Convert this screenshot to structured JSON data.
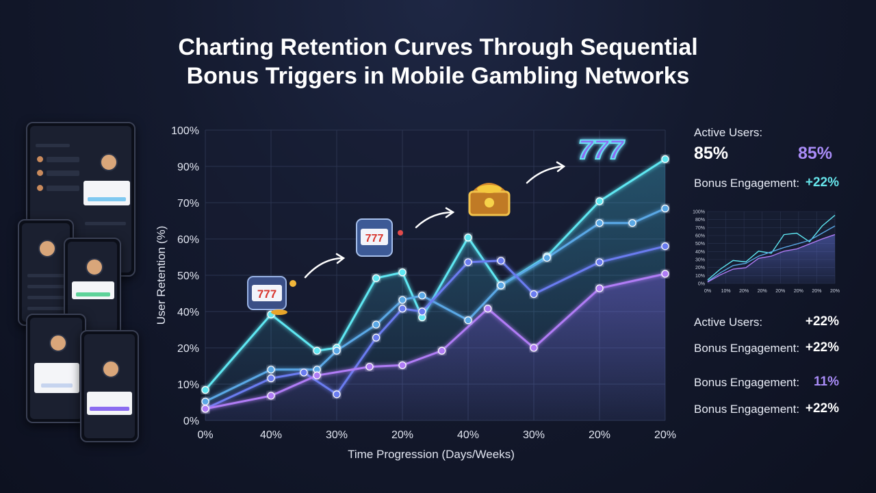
{
  "title": [
    "Charting Retention Curves Through Sequential",
    "Bonus Triggers in Mobile Gambling Networks"
  ],
  "colors": {
    "cyan": "#5ee7f2",
    "blue": "#5aa8e6",
    "indigo": "#6b7cf0",
    "purple": "#b07cf5",
    "background": "#141a2e"
  },
  "stats": {
    "active_users_label": "Active Users:",
    "active_users_value_a": "85%",
    "active_users_value_b": "85%",
    "bonus_engagement_label": "Bonus Engagement:",
    "bonus_engagement_value": "+22%",
    "rows": [
      {
        "label": "Active Users:",
        "value": "+22%"
      },
      {
        "label": "Bonus Engagement:",
        "value": "+22%"
      },
      {
        "label": "Bonus Engagement:",
        "value": "11%"
      },
      {
        "label": "Bonus Engagement:",
        "value": "+22%"
      }
    ]
  },
  "icons": [
    "slot-machine-icon",
    "slot-machine-icon",
    "treasure-chest-icon",
    "777-jackpot-icon"
  ],
  "chart_data": [
    {
      "type": "area",
      "xlabel": "Time Progression (Days/Weeks)",
      "ylabel": "User Retention (%)",
      "x_tick_labels": [
        "0%",
        "40%",
        "30%",
        "20%",
        "40%",
        "30%",
        "20%",
        "20%"
      ],
      "y_tick_labels": [
        "0%",
        "10%",
        "20%",
        "40%",
        "50%",
        "60%",
        "70%",
        "90%",
        "100%"
      ],
      "grid": true,
      "x": [
        0,
        1,
        1.7,
        2,
        2.6,
        3,
        3.3,
        4,
        4.5,
        5.2,
        6,
        6.5,
        7
      ],
      "series": [
        {
          "color": "#5ee7f2",
          "x": [
            0,
            1,
            1.7,
            2,
            2.6,
            3,
            3.3,
            4,
            4.5,
            5.2,
            6,
            7
          ],
          "values": [
            10.5,
            36.5,
            24,
            25,
            49,
            51,
            35.5,
            63,
            46.5,
            56.5,
            75.5,
            90
          ]
        },
        {
          "color": "#5aa8e6",
          "x": [
            0,
            1,
            1.7,
            2,
            2.6,
            3,
            3.3,
            4,
            4.5,
            5.2,
            6,
            6.5,
            7
          ],
          "values": [
            6.5,
            17.5,
            17.5,
            24,
            33,
            41.5,
            43,
            34.5,
            46.5,
            56,
            68,
            68,
            73
          ]
        },
        {
          "color": "#6b7cf0",
          "x": [
            0,
            1,
            1.5,
            2,
            2.6,
            3,
            3.3,
            4,
            4.5,
            5,
            6,
            7
          ],
          "values": [
            4,
            14.5,
            16.5,
            9,
            28.5,
            38.5,
            37.5,
            54.5,
            55,
            43.5,
            54.5,
            60
          ]
        },
        {
          "color": "#b07cf5",
          "x": [
            0,
            1,
            1.7,
            2.5,
            3,
            3.6,
            4.3,
            5,
            6,
            7
          ],
          "values": [
            4,
            8.5,
            15.5,
            18.5,
            19,
            24,
            38.5,
            25,
            45.5,
            50.5
          ]
        }
      ]
    },
    {
      "type": "area",
      "x_tick_labels": [
        "0%",
        "10%",
        "20%",
        "20%",
        "20%",
        "20%",
        "20%",
        "20%"
      ],
      "y_tick_labels": [
        "0%",
        "10%",
        "20%",
        "30%",
        "40%",
        "50%",
        "60%",
        "70%",
        "80%",
        "100%"
      ],
      "grid": true,
      "series": [
        {
          "color": "#5ee7f2",
          "values": [
            5,
            20,
            32,
            30,
            45,
            42,
            68,
            70,
            58,
            80,
            95
          ]
        },
        {
          "color": "#5aa8e6",
          "values": [
            3,
            15,
            25,
            28,
            38,
            44,
            50,
            55,
            60,
            70,
            80
          ]
        },
        {
          "color": "#b07cf5",
          "values": [
            2,
            12,
            20,
            22,
            35,
            38,
            45,
            48,
            55,
            62,
            68
          ]
        }
      ]
    }
  ]
}
